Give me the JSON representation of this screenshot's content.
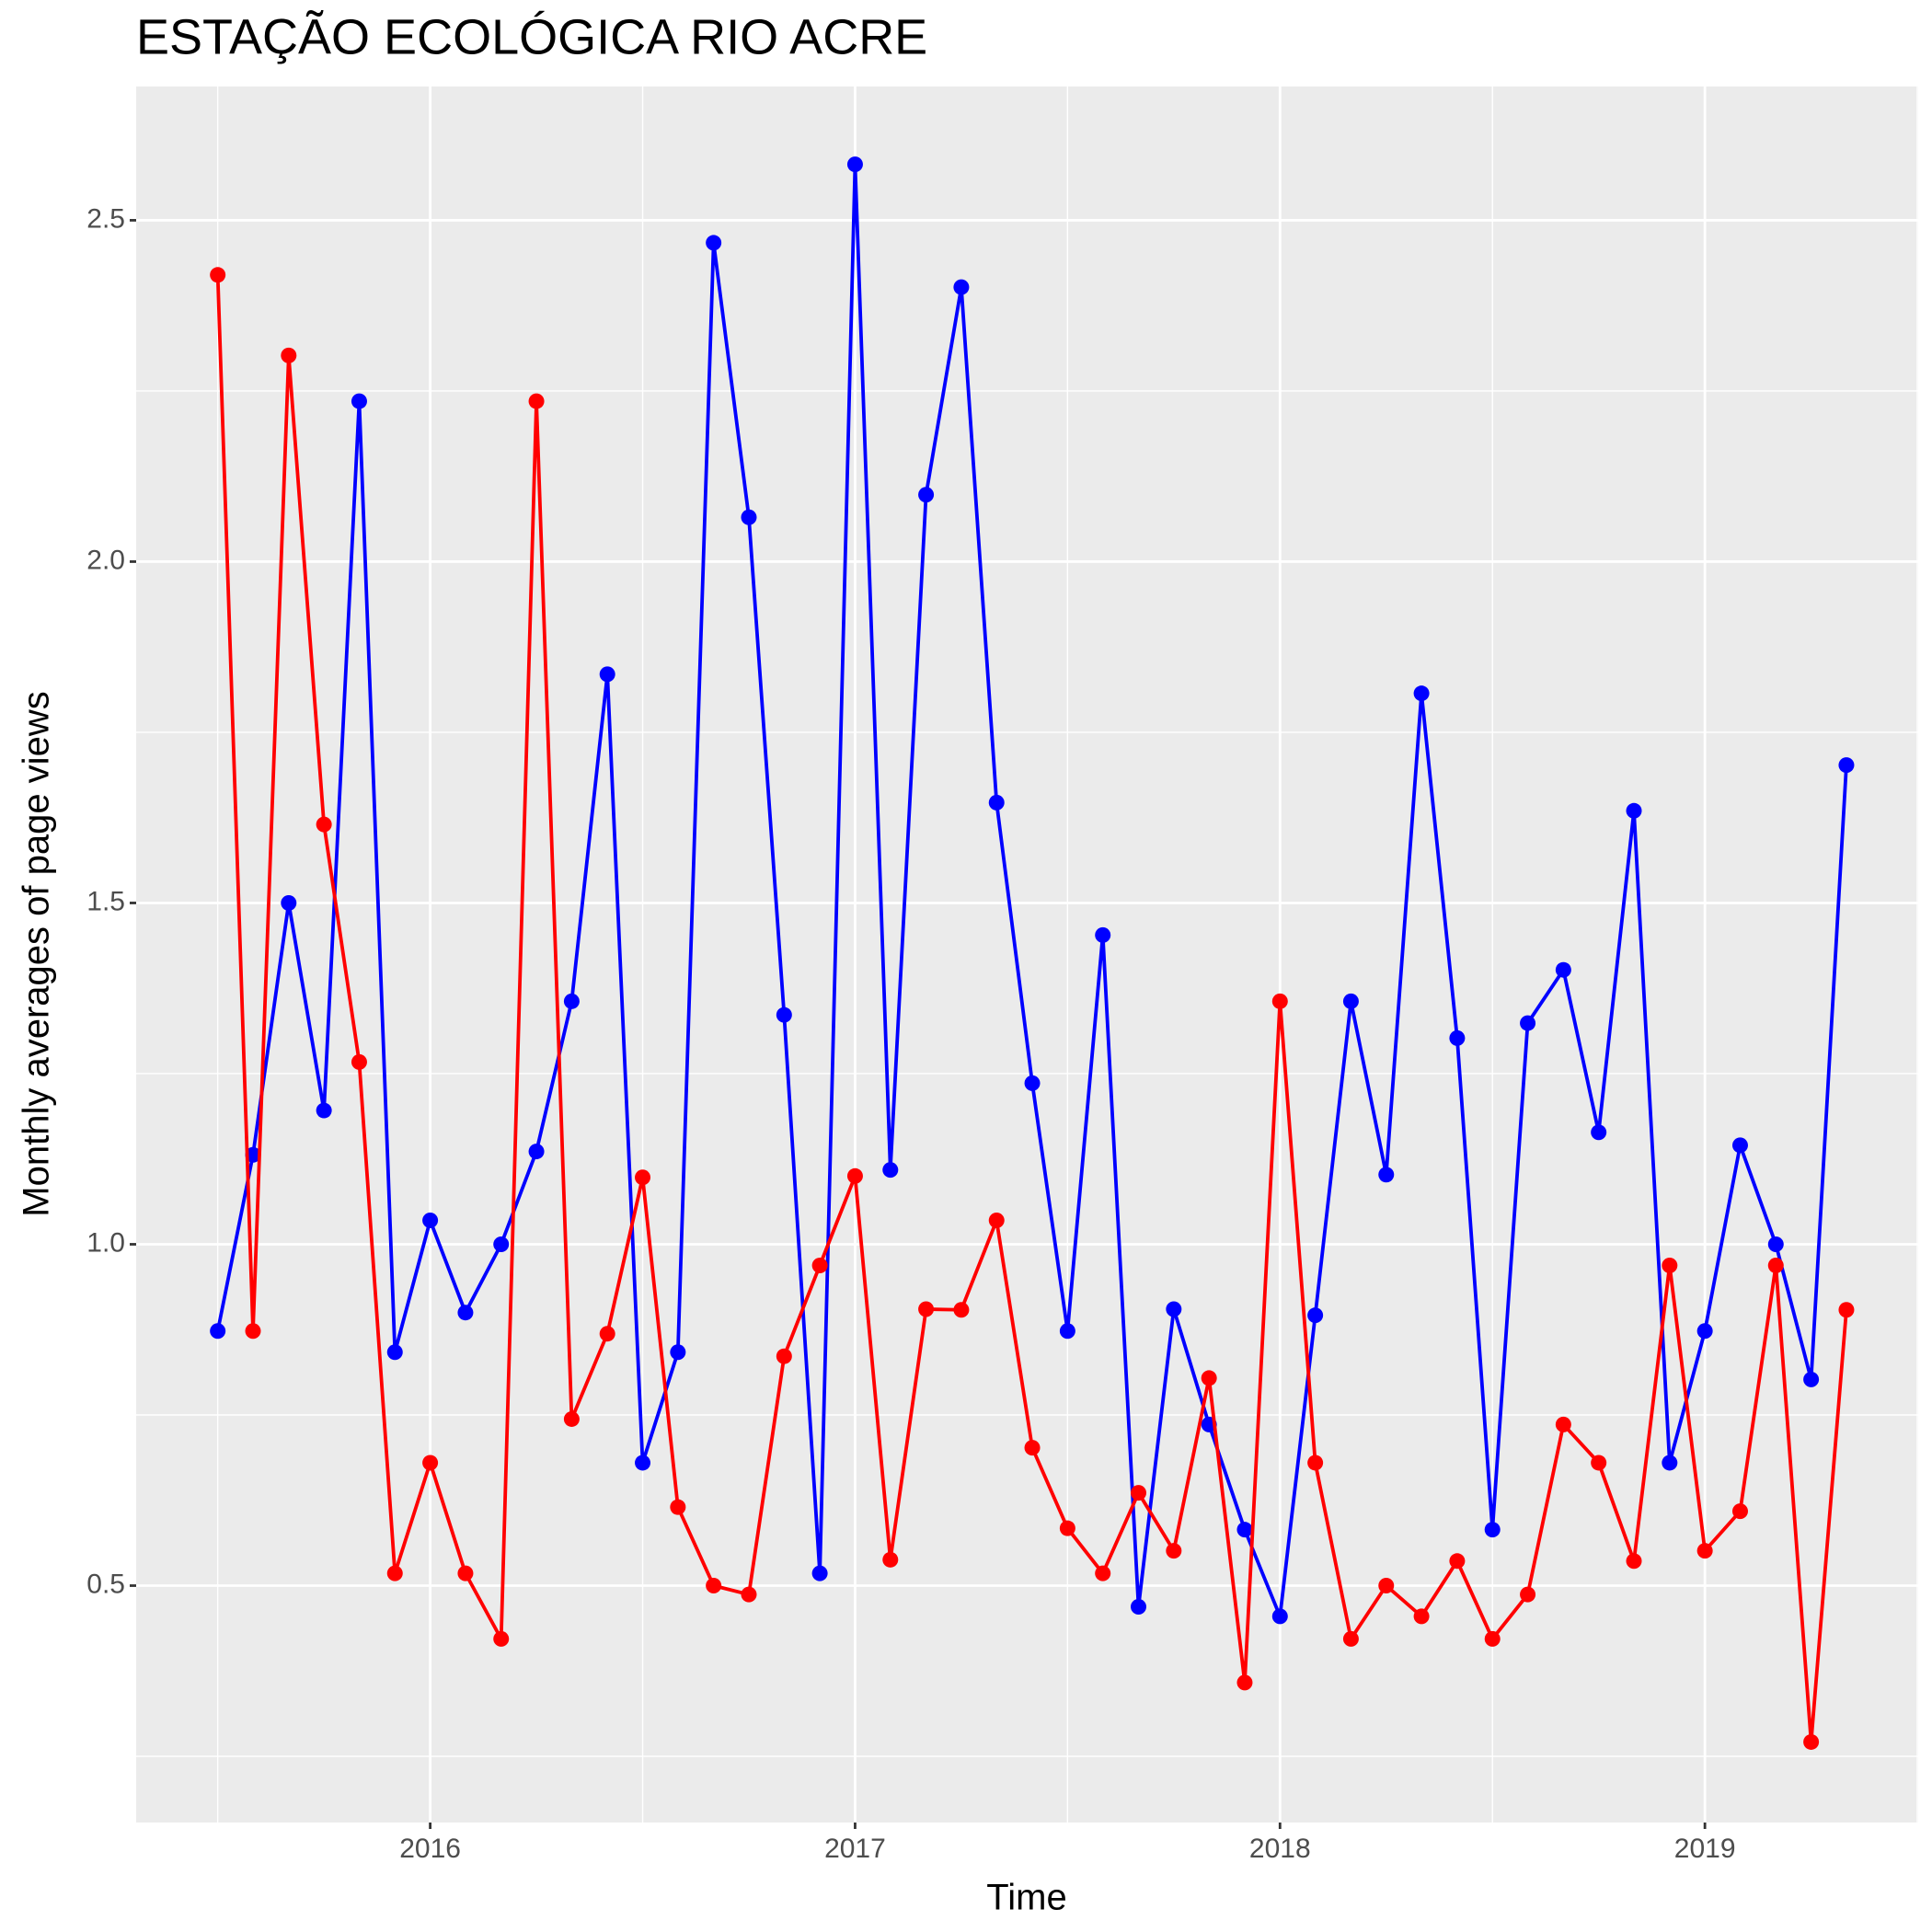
{
  "chart_data": {
    "type": "line",
    "title": "ESTAÇÃO ECOLÓGICA RIO ACRE",
    "x_label": "Time",
    "y_label": "Monthly averages of page views",
    "x": [
      2015.5,
      2015.583,
      2015.667,
      2015.75,
      2015.833,
      2015.917,
      2016,
      2016.083,
      2016.167,
      2016.25,
      2016.333,
      2016.417,
      2016.5,
      2016.583,
      2016.667,
      2016.75,
      2016.833,
      2016.917,
      2017,
      2017.083,
      2017.167,
      2017.25,
      2017.333,
      2017.417,
      2017.5,
      2017.583,
      2017.667,
      2017.75,
      2017.833,
      2017.917,
      2018,
      2018.083,
      2018.167,
      2018.25,
      2018.333,
      2018.417,
      2018.5,
      2018.583,
      2018.667,
      2018.75,
      2018.833,
      2018.917,
      2019,
      2019.083,
      2019.167,
      2019.25,
      2019.333
    ],
    "series": [
      {
        "color": "#0000ff",
        "values": [
          0.873,
          1.131,
          1.5,
          1.196,
          2.235,
          0.842,
          1.035,
          0.9,
          1.0,
          1.136,
          1.356,
          1.835,
          0.68,
          0.842,
          2.467,
          2.065,
          1.336,
          0.518,
          2.582,
          1.109,
          2.098,
          2.402,
          1.647,
          1.236,
          0.873,
          1.453,
          0.469,
          0.905,
          0.736,
          0.582,
          0.455,
          0.896,
          1.356,
          1.102,
          1.807,
          1.302,
          0.582,
          1.324,
          1.402,
          1.164,
          1.635,
          0.68,
          0.873,
          1.145,
          1.0,
          0.802,
          1.702
        ]
      },
      {
        "color": "#ff0000",
        "values": [
          2.42,
          0.873,
          2.302,
          1.615,
          1.267,
          0.518,
          0.68,
          0.518,
          0.422,
          2.235,
          0.744,
          0.869,
          1.098,
          0.615,
          0.5,
          0.487,
          0.836,
          0.969,
          1.1,
          0.538,
          0.905,
          0.904,
          1.035,
          0.702,
          0.584,
          0.518,
          0.636,
          0.551,
          0.804,
          0.358,
          1.356,
          0.68,
          0.422,
          0.5,
          0.455,
          0.536,
          0.422,
          0.487,
          0.736,
          0.68,
          0.536,
          0.969,
          0.551,
          0.609,
          0.969,
          0.271,
          0.904
        ]
      }
    ],
    "xlim": [
      2015.308,
      2019.502
    ],
    "ylim": [
      0.153,
      2.696
    ],
    "xticks": [
      2016,
      2017,
      2018,
      2019
    ],
    "yticks": [
      0.5,
      {
        "value": 1,
        "label": "1.0"
      },
      1.5,
      {
        "value": 2,
        "label": "2.0"
      },
      2.5
    ],
    "xminor": [
      2015.5,
      2016.5,
      2017.5,
      2018.5,
      2019.5
    ],
    "yminor": [
      0.25,
      0.75,
      1.25,
      1.75,
      2.25
    ],
    "grid": true
  }
}
